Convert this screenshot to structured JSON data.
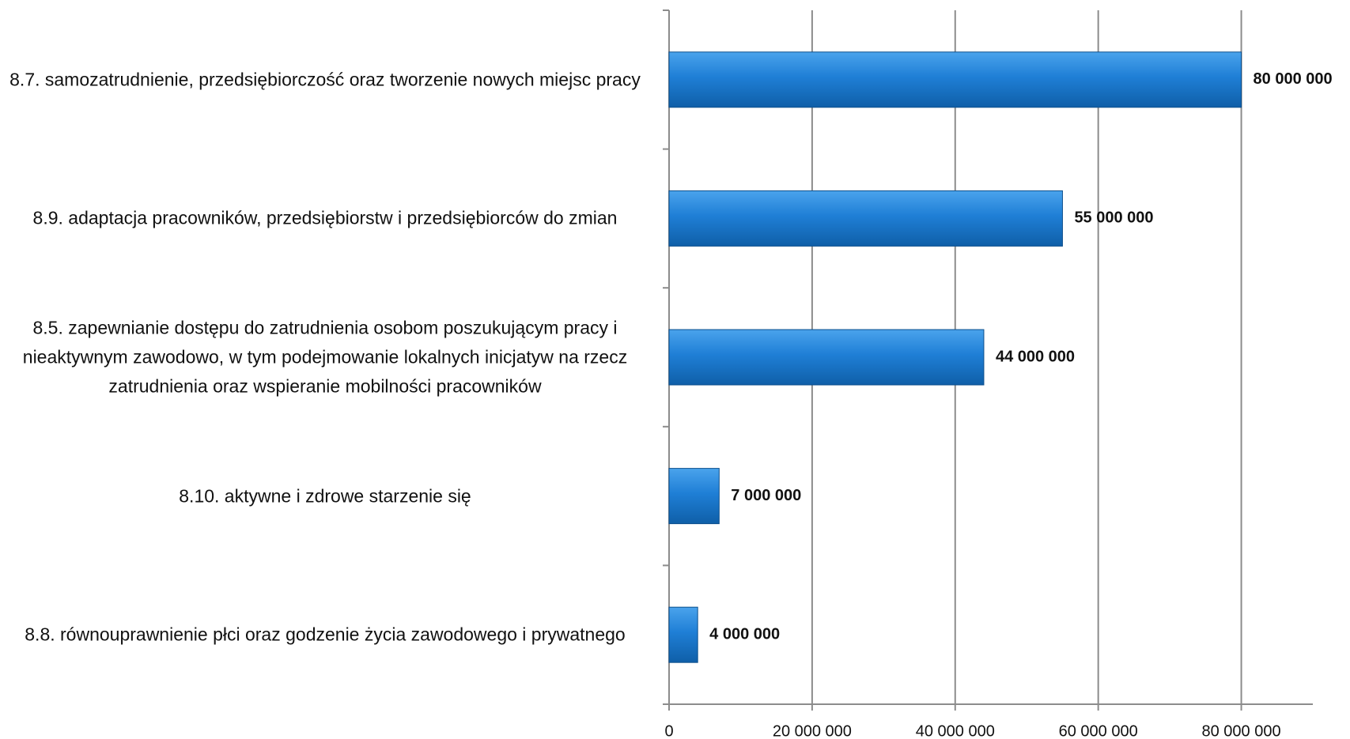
{
  "chart_data": {
    "type": "bar",
    "orientation": "horizontal",
    "categories": [
      "8.7. samozatrudnienie, przedsiębiorczość oraz tworzenie nowych miejsc pracy",
      "8.9. adaptacja pracowników, przedsiębiorstw i przedsiębiorców do zmian",
      "8.5. zapewnianie dostępu do zatrudnienia osobom poszukującym pracy i nieaktywnym zawodowo, w tym podejmowanie lokalnych inicjatyw na rzecz zatrudnienia oraz wspieranie mobilności pracowników",
      "8.10. aktywne i zdrowe starzenie się",
      "8.8. równouprawnienie płci oraz godzenie życia zawodowego i prywatnego"
    ],
    "values": [
      80000000,
      55000000,
      44000000,
      7000000,
      4000000
    ],
    "value_labels": [
      "80 000 000",
      "55 000 000",
      "44 000 000",
      "7 000 000",
      "4 000 000"
    ],
    "color": "#1f7fd6",
    "xlim": [
      0,
      90000000
    ],
    "xticks": [
      0,
      {
        "value": 20000000,
        "label": "20 000 000"
      },
      {
        "value": 40000000,
        "label": "40 000 000"
      },
      {
        "value": 60000000,
        "label": "60 000 000"
      },
      {
        "value": 80000000,
        "label": "80 000 000"
      }
    ],
    "grid": true
  }
}
